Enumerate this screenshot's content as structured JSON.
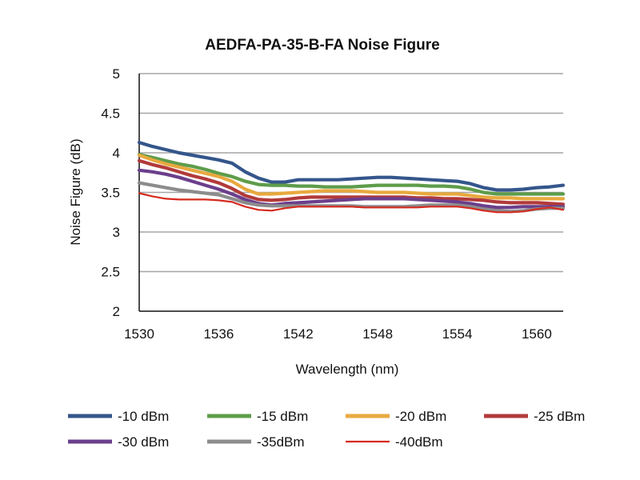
{
  "chart_data": {
    "type": "line",
    "title": "AEDFA-PA-35-B-FA Noise Figure",
    "xlabel": "Wavelength (nm)",
    "ylabel": "Noise Figure (dB)",
    "xlim": [
      1530,
      1562
    ],
    "ylim": [
      2,
      5
    ],
    "x_ticks": [
      "1530",
      "1536",
      "1542",
      "1548",
      "1554",
      "1560"
    ],
    "y_ticks": [
      "2",
      "2.5",
      "3",
      "3.5",
      "4",
      "4.5",
      "5"
    ],
    "grid": "horizontal",
    "legend_position": "bottom",
    "series": [
      {
        "name": "-10 dBm",
        "color": "#34568b",
        "points": [
          [
            1530,
            4.13
          ],
          [
            1531,
            4.08
          ],
          [
            1532,
            4.04
          ],
          [
            1533,
            4.0
          ],
          [
            1534,
            3.97
          ],
          [
            1535,
            3.94
          ],
          [
            1536,
            3.91
          ],
          [
            1537,
            3.87
          ],
          [
            1538,
            3.76
          ],
          [
            1539,
            3.68
          ],
          [
            1540,
            3.63
          ],
          [
            1541,
            3.63
          ],
          [
            1542,
            3.66
          ],
          [
            1543,
            3.66
          ],
          [
            1544,
            3.66
          ],
          [
            1545,
            3.66
          ],
          [
            1546,
            3.67
          ],
          [
            1547,
            3.68
          ],
          [
            1548,
            3.69
          ],
          [
            1549,
            3.69
          ],
          [
            1550,
            3.68
          ],
          [
            1551,
            3.67
          ],
          [
            1552,
            3.66
          ],
          [
            1553,
            3.65
          ],
          [
            1554,
            3.64
          ],
          [
            1555,
            3.61
          ],
          [
            1556,
            3.56
          ],
          [
            1557,
            3.53
          ],
          [
            1558,
            3.53
          ],
          [
            1559,
            3.54
          ],
          [
            1560,
            3.56
          ],
          [
            1561,
            3.57
          ],
          [
            1562,
            3.59
          ]
        ]
      },
      {
        "name": "-15 dBm",
        "color": "#5e9c4a",
        "points": [
          [
            1530,
            3.98
          ],
          [
            1531,
            3.94
          ],
          [
            1532,
            3.9
          ],
          [
            1533,
            3.86
          ],
          [
            1534,
            3.83
          ],
          [
            1535,
            3.79
          ],
          [
            1536,
            3.74
          ],
          [
            1537,
            3.7
          ],
          [
            1538,
            3.64
          ],
          [
            1539,
            3.6
          ],
          [
            1540,
            3.59
          ],
          [
            1541,
            3.59
          ],
          [
            1542,
            3.58
          ],
          [
            1543,
            3.58
          ],
          [
            1544,
            3.57
          ],
          [
            1545,
            3.57
          ],
          [
            1546,
            3.57
          ],
          [
            1547,
            3.58
          ],
          [
            1548,
            3.59
          ],
          [
            1549,
            3.59
          ],
          [
            1550,
            3.59
          ],
          [
            1551,
            3.59
          ],
          [
            1552,
            3.58
          ],
          [
            1553,
            3.58
          ],
          [
            1554,
            3.57
          ],
          [
            1555,
            3.54
          ],
          [
            1556,
            3.5
          ],
          [
            1557,
            3.48
          ],
          [
            1558,
            3.48
          ],
          [
            1559,
            3.48
          ],
          [
            1560,
            3.48
          ],
          [
            1561,
            3.48
          ],
          [
            1562,
            3.48
          ]
        ]
      },
      {
        "name": "-20 dBm",
        "color": "#e8a93e",
        "points": [
          [
            1530,
            3.97
          ],
          [
            1531,
            3.91
          ],
          [
            1532,
            3.86
          ],
          [
            1533,
            3.82
          ],
          [
            1534,
            3.78
          ],
          [
            1535,
            3.74
          ],
          [
            1536,
            3.7
          ],
          [
            1537,
            3.64
          ],
          [
            1538,
            3.54
          ],
          [
            1539,
            3.48
          ],
          [
            1540,
            3.48
          ],
          [
            1541,
            3.49
          ],
          [
            1542,
            3.5
          ],
          [
            1543,
            3.51
          ],
          [
            1544,
            3.52
          ],
          [
            1545,
            3.52
          ],
          [
            1546,
            3.52
          ],
          [
            1547,
            3.51
          ],
          [
            1548,
            3.5
          ],
          [
            1549,
            3.5
          ],
          [
            1550,
            3.5
          ],
          [
            1551,
            3.49
          ],
          [
            1552,
            3.48
          ],
          [
            1553,
            3.48
          ],
          [
            1554,
            3.48
          ],
          [
            1555,
            3.46
          ],
          [
            1556,
            3.44
          ],
          [
            1557,
            3.43
          ],
          [
            1558,
            3.43
          ],
          [
            1559,
            3.42
          ],
          [
            1560,
            3.42
          ],
          [
            1561,
            3.42
          ],
          [
            1562,
            3.42
          ]
        ]
      },
      {
        "name": "-25 dBm",
        "color": "#b23a3a",
        "points": [
          [
            1530,
            3.9
          ],
          [
            1531,
            3.85
          ],
          [
            1532,
            3.81
          ],
          [
            1533,
            3.76
          ],
          [
            1534,
            3.71
          ],
          [
            1535,
            3.67
          ],
          [
            1536,
            3.62
          ],
          [
            1537,
            3.55
          ],
          [
            1538,
            3.46
          ],
          [
            1539,
            3.41
          ],
          [
            1540,
            3.4
          ],
          [
            1541,
            3.41
          ],
          [
            1542,
            3.43
          ],
          [
            1543,
            3.44
          ],
          [
            1544,
            3.44
          ],
          [
            1545,
            3.44
          ],
          [
            1546,
            3.44
          ],
          [
            1547,
            3.44
          ],
          [
            1548,
            3.44
          ],
          [
            1549,
            3.44
          ],
          [
            1550,
            3.44
          ],
          [
            1551,
            3.43
          ],
          [
            1552,
            3.43
          ],
          [
            1553,
            3.42
          ],
          [
            1554,
            3.42
          ],
          [
            1555,
            3.41
          ],
          [
            1556,
            3.4
          ],
          [
            1557,
            3.38
          ],
          [
            1558,
            3.37
          ],
          [
            1559,
            3.37
          ],
          [
            1560,
            3.37
          ],
          [
            1561,
            3.36
          ],
          [
            1562,
            3.35
          ]
        ]
      },
      {
        "name": "-30 dBm",
        "color": "#6b3f8c",
        "points": [
          [
            1530,
            3.78
          ],
          [
            1531,
            3.76
          ],
          [
            1532,
            3.73
          ],
          [
            1533,
            3.69
          ],
          [
            1534,
            3.64
          ],
          [
            1535,
            3.59
          ],
          [
            1536,
            3.54
          ],
          [
            1537,
            3.48
          ],
          [
            1538,
            3.41
          ],
          [
            1539,
            3.36
          ],
          [
            1540,
            3.34
          ],
          [
            1541,
            3.36
          ],
          [
            1542,
            3.37
          ],
          [
            1543,
            3.38
          ],
          [
            1544,
            3.39
          ],
          [
            1545,
            3.4
          ],
          [
            1546,
            3.41
          ],
          [
            1547,
            3.42
          ],
          [
            1548,
            3.42
          ],
          [
            1549,
            3.42
          ],
          [
            1550,
            3.42
          ],
          [
            1551,
            3.41
          ],
          [
            1552,
            3.4
          ],
          [
            1553,
            3.39
          ],
          [
            1554,
            3.38
          ],
          [
            1555,
            3.36
          ],
          [
            1556,
            3.33
          ],
          [
            1557,
            3.31
          ],
          [
            1558,
            3.31
          ],
          [
            1559,
            3.32
          ],
          [
            1560,
            3.32
          ],
          [
            1561,
            3.32
          ],
          [
            1562,
            3.32
          ]
        ]
      },
      {
        "name": "-35dBm",
        "color": "#8c8c8c",
        "points": [
          [
            1530,
            3.62
          ],
          [
            1531,
            3.59
          ],
          [
            1532,
            3.56
          ],
          [
            1533,
            3.53
          ],
          [
            1534,
            3.51
          ],
          [
            1535,
            3.49
          ],
          [
            1536,
            3.47
          ],
          [
            1537,
            3.42
          ],
          [
            1538,
            3.37
          ],
          [
            1539,
            3.34
          ],
          [
            1540,
            3.33
          ],
          [
            1541,
            3.33
          ],
          [
            1542,
            3.33
          ],
          [
            1543,
            3.33
          ],
          [
            1544,
            3.33
          ],
          [
            1545,
            3.33
          ],
          [
            1546,
            3.33
          ],
          [
            1547,
            3.32
          ],
          [
            1548,
            3.32
          ],
          [
            1549,
            3.32
          ],
          [
            1550,
            3.32
          ],
          [
            1551,
            3.33
          ],
          [
            1552,
            3.34
          ],
          [
            1553,
            3.34
          ],
          [
            1554,
            3.34
          ],
          [
            1555,
            3.32
          ],
          [
            1556,
            3.29
          ],
          [
            1557,
            3.27
          ],
          [
            1558,
            3.26
          ],
          [
            1559,
            3.27
          ],
          [
            1560,
            3.29
          ],
          [
            1561,
            3.3
          ],
          [
            1562,
            3.3
          ]
        ]
      },
      {
        "name": "-40dBm",
        "color": "#d62a1e",
        "points": [
          [
            1530,
            3.49
          ],
          [
            1531,
            3.45
          ],
          [
            1532,
            3.42
          ],
          [
            1533,
            3.41
          ],
          [
            1534,
            3.41
          ],
          [
            1535,
            3.41
          ],
          [
            1536,
            3.4
          ],
          [
            1537,
            3.38
          ],
          [
            1538,
            3.32
          ],
          [
            1539,
            3.28
          ],
          [
            1540,
            3.27
          ],
          [
            1541,
            3.3
          ],
          [
            1542,
            3.32
          ],
          [
            1543,
            3.32
          ],
          [
            1544,
            3.32
          ],
          [
            1545,
            3.32
          ],
          [
            1546,
            3.32
          ],
          [
            1547,
            3.31
          ],
          [
            1548,
            3.31
          ],
          [
            1549,
            3.31
          ],
          [
            1550,
            3.31
          ],
          [
            1551,
            3.31
          ],
          [
            1552,
            3.32
          ],
          [
            1553,
            3.32
          ],
          [
            1554,
            3.32
          ],
          [
            1555,
            3.3
          ],
          [
            1556,
            3.27
          ],
          [
            1557,
            3.25
          ],
          [
            1558,
            3.25
          ],
          [
            1559,
            3.26
          ],
          [
            1560,
            3.29
          ],
          [
            1561,
            3.31
          ],
          [
            1562,
            3.28
          ]
        ]
      }
    ]
  }
}
